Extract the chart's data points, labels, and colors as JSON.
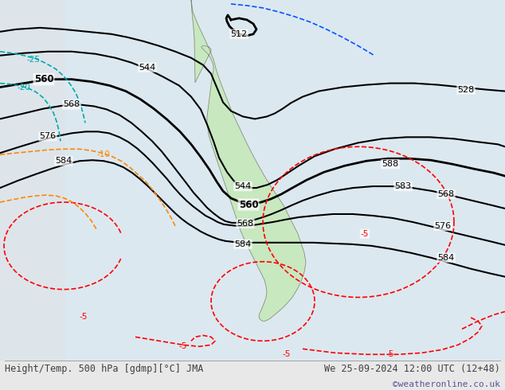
{
  "title_left": "Height/Temp. 500 hPa [gdmp][°C] JMA",
  "title_right": "We 25-09-2024 12:00 UTC (12+48)",
  "copyright": "©weatheronline.co.uk",
  "background_color": "#e8e8e8",
  "land_color": "#c8e8c0",
  "ocean_color": "#dce8f0",
  "bottom_text_color": "#404040",
  "fig_width": 6.34,
  "fig_height": 4.9,
  "dpi": 100
}
